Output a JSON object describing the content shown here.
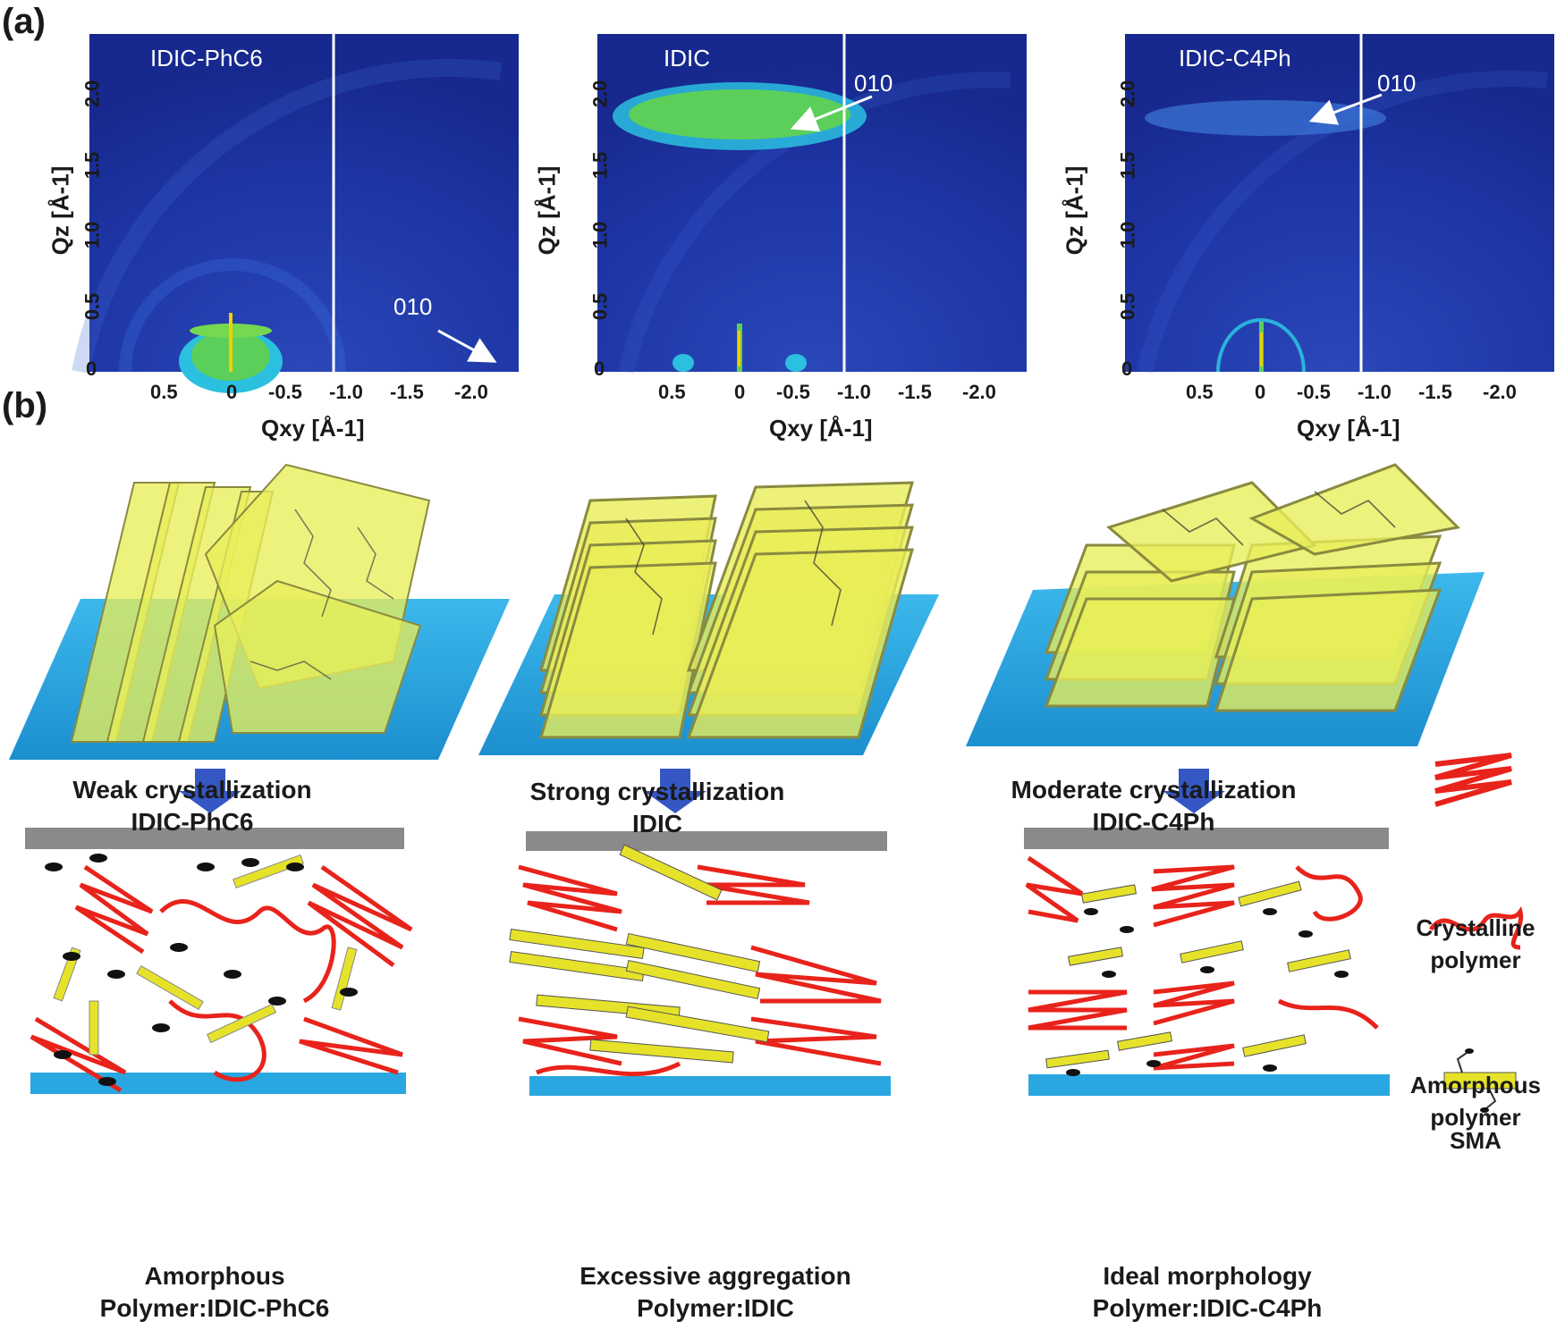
{
  "labels": {
    "a": "(a)",
    "b": "(b)"
  },
  "giwaxs": [
    {
      "name": "IDIC-PhC6",
      "peak": "010"
    },
    {
      "name": "IDIC",
      "peak": "010"
    },
    {
      "name": "IDIC-C4Ph",
      "peak": "010"
    }
  ],
  "axes": {
    "qz_label": "Qz [Å-1]",
    "qxy_label": "Qxy [Å-1]",
    "qz_ticks": [
      "2.0",
      "1.5",
      "1.0",
      "0.5",
      "0"
    ],
    "qxy_ticks": [
      "0.5",
      "0",
      "-0.5",
      "-1.0",
      "-1.5",
      "-2.0"
    ]
  },
  "columns": [
    {
      "crystallization": "Weak crystallization",
      "molecule": "IDIC-PhC6",
      "morphology": "Amorphous",
      "blend": "Polymer:IDIC-PhC6"
    },
    {
      "crystallization": "Strong crystallization",
      "molecule": "IDIC",
      "morphology": "Excessive aggregation",
      "blend": "Polymer:IDIC"
    },
    {
      "crystallization": "Moderate crystallization",
      "molecule": "IDIC-C4Ph",
      "morphology": "Ideal morphology",
      "blend": "Polymer:IDIC-C4Ph"
    }
  ],
  "legend": {
    "crystalline_1": "Crystalline",
    "crystalline_2": "polymer",
    "amorphous_1": "Amorphous",
    "amorphous_2": "polymer",
    "sma": "SMA"
  },
  "colors": {
    "detector_bg": "#1b2f9a",
    "substrate": "#2aa7e0",
    "electrode": "#8a8a8a",
    "polymer": "#e8231b",
    "sma": "#e6e22a",
    "arrow": "#3557c4"
  }
}
